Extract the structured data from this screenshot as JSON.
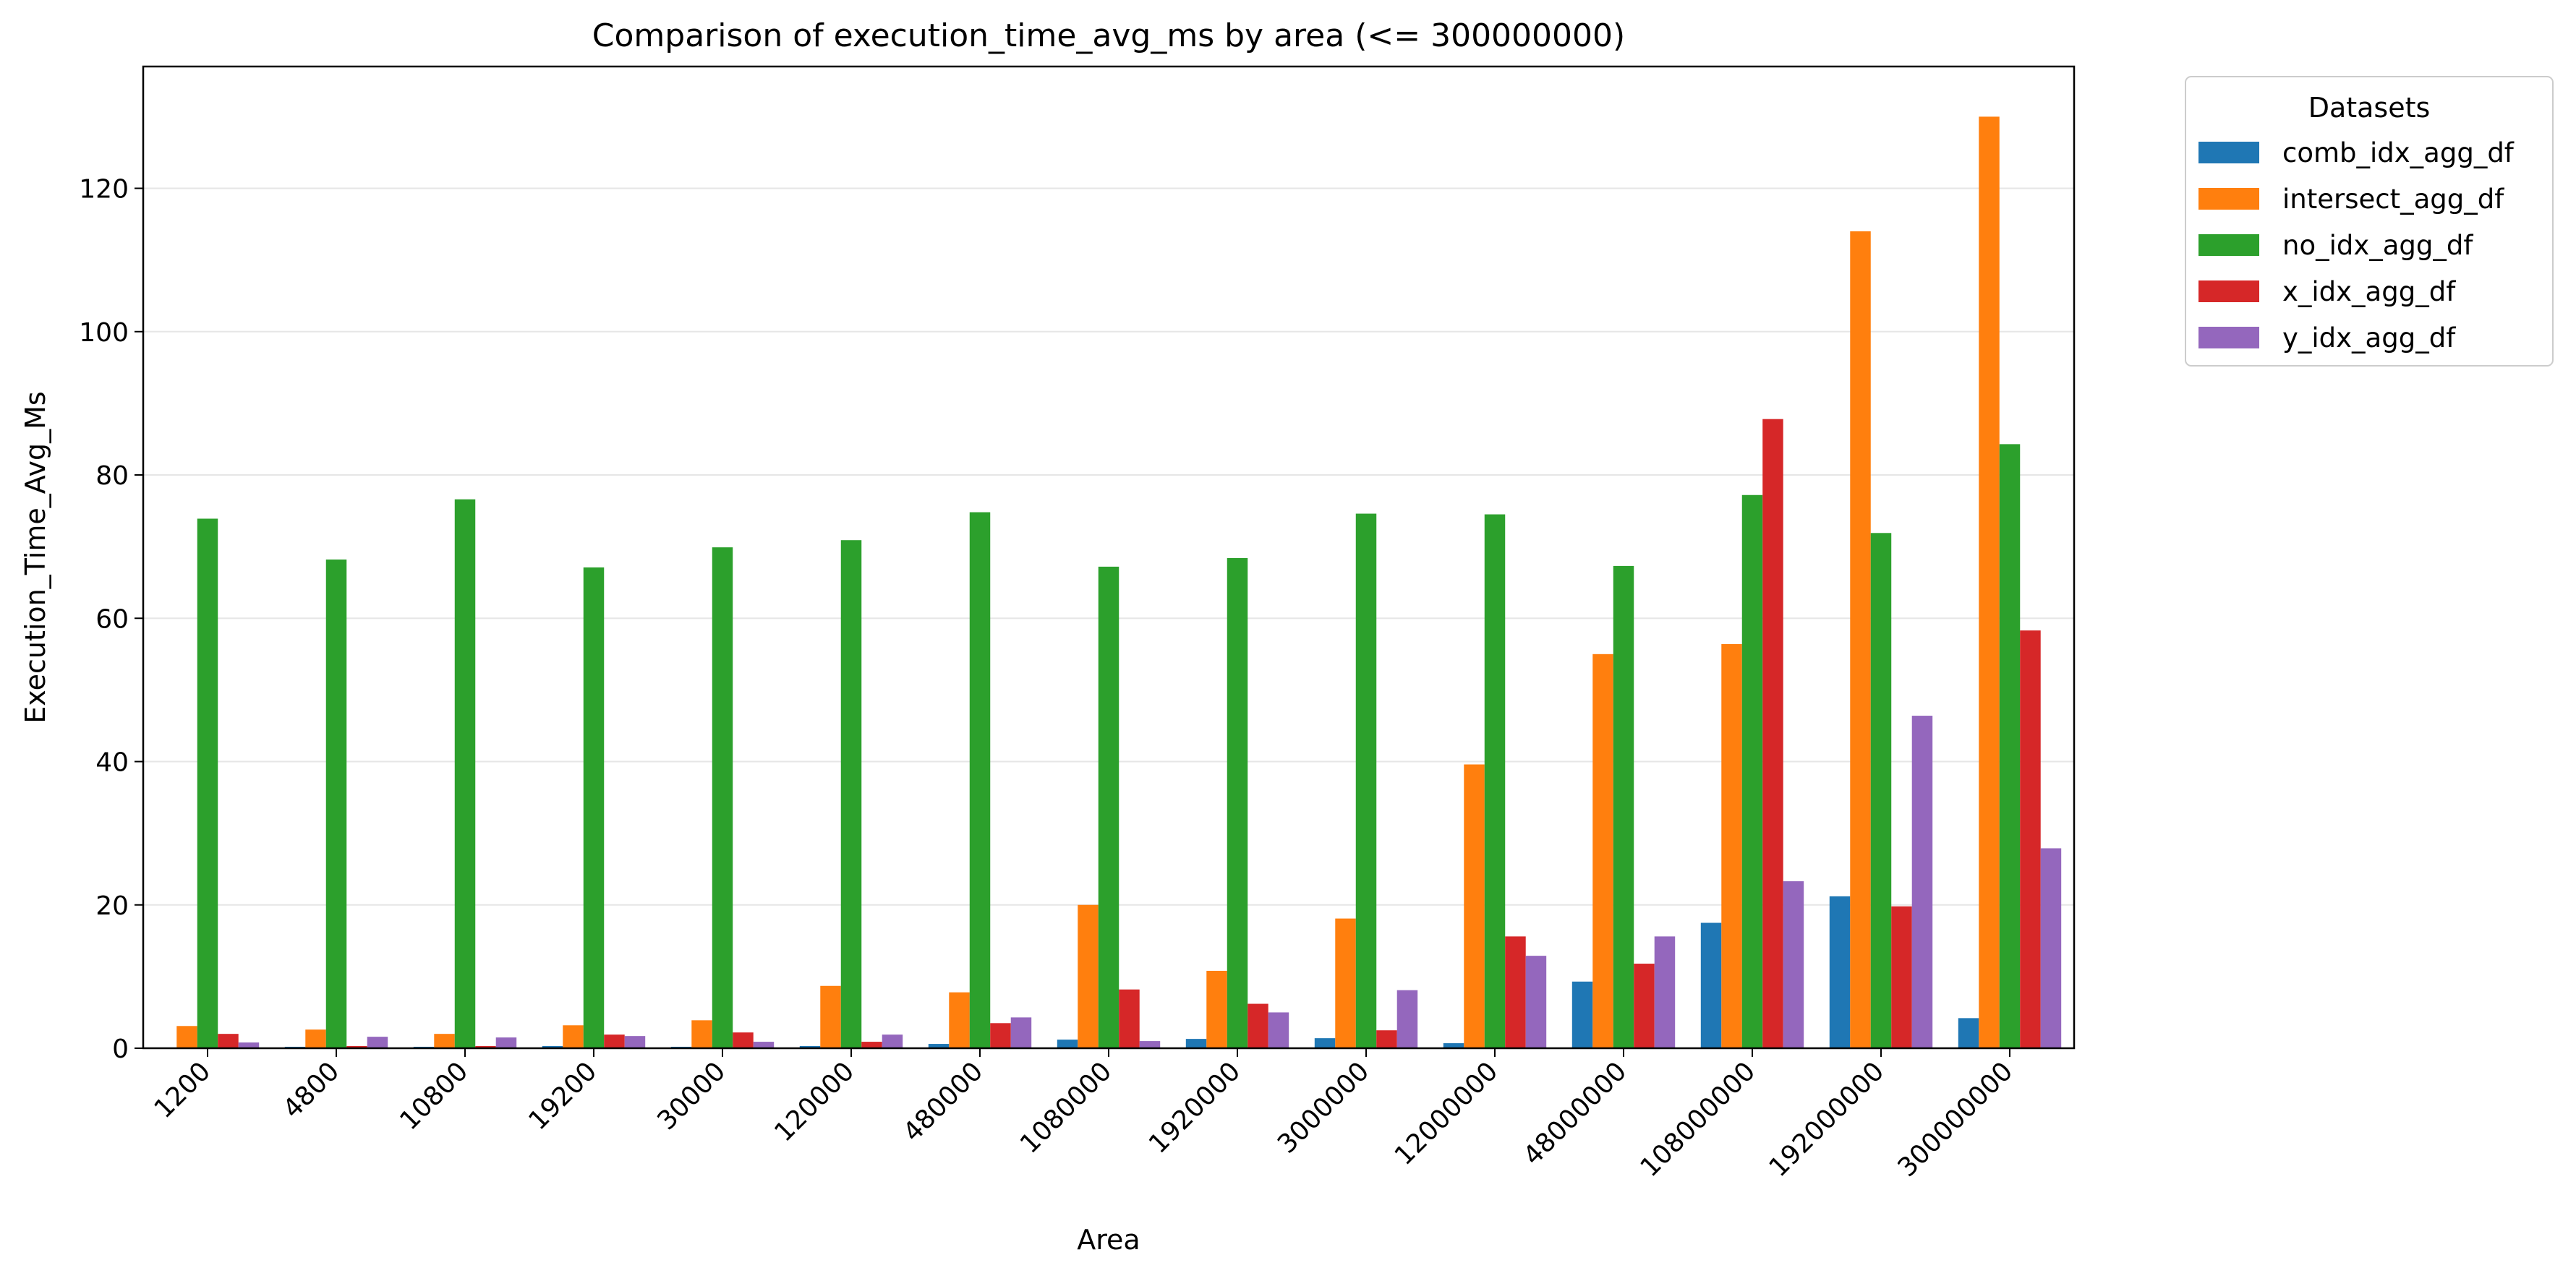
{
  "chart_data": {
    "type": "bar",
    "title": "Comparison of execution_time_avg_ms by area (<= 300000000)",
    "xlabel": "Area",
    "ylabel": "Execution_Time_Avg_Ms",
    "ylim": [
      0,
      137
    ],
    "yticks": [
      0,
      20,
      40,
      60,
      80,
      100,
      120
    ],
    "grid": "horizontal",
    "legend": {
      "title": "Datasets",
      "placement": "outside-top-right"
    },
    "categories": [
      "1200",
      "4800",
      "10800",
      "19200",
      "30000",
      "120000",
      "480000",
      "1080000",
      "1920000",
      "3000000",
      "12000000",
      "48000000",
      "108000000",
      "192000000",
      "300000000"
    ],
    "series": [
      {
        "name": "comb_idx_agg_df",
        "color": "#1f77b4",
        "values": [
          0.1,
          0.2,
          0.2,
          0.3,
          0.2,
          0.3,
          0.6,
          1.2,
          1.3,
          1.4,
          0.7,
          9.3,
          17.5,
          21.2,
          4.2
        ]
      },
      {
        "name": "intersect_agg_df",
        "color": "#ff7f0e",
        "values": [
          3.1,
          2.6,
          2.0,
          3.2,
          3.9,
          8.7,
          7.8,
          20.0,
          10.8,
          18.1,
          39.6,
          55.0,
          56.4,
          114.0,
          130.0
        ]
      },
      {
        "name": "no_idx_agg_df",
        "color": "#2ca02c",
        "values": [
          73.9,
          68.2,
          76.6,
          67.1,
          69.9,
          70.9,
          74.8,
          67.2,
          68.4,
          74.6,
          74.5,
          67.3,
          77.2,
          71.9,
          84.3
        ]
      },
      {
        "name": "x_idx_agg_df",
        "color": "#d62728",
        "values": [
          2.0,
          0.3,
          0.3,
          1.9,
          2.2,
          0.9,
          3.5,
          8.2,
          6.2,
          2.5,
          15.6,
          11.8,
          87.8,
          19.8,
          58.3
        ]
      },
      {
        "name": "y_idx_agg_df",
        "color": "#9467bd",
        "values": [
          0.8,
          1.6,
          1.5,
          1.7,
          0.9,
          1.9,
          4.3,
          1.0,
          5.0,
          8.1,
          12.9,
          15.6,
          23.3,
          46.4,
          27.9
        ]
      }
    ]
  }
}
